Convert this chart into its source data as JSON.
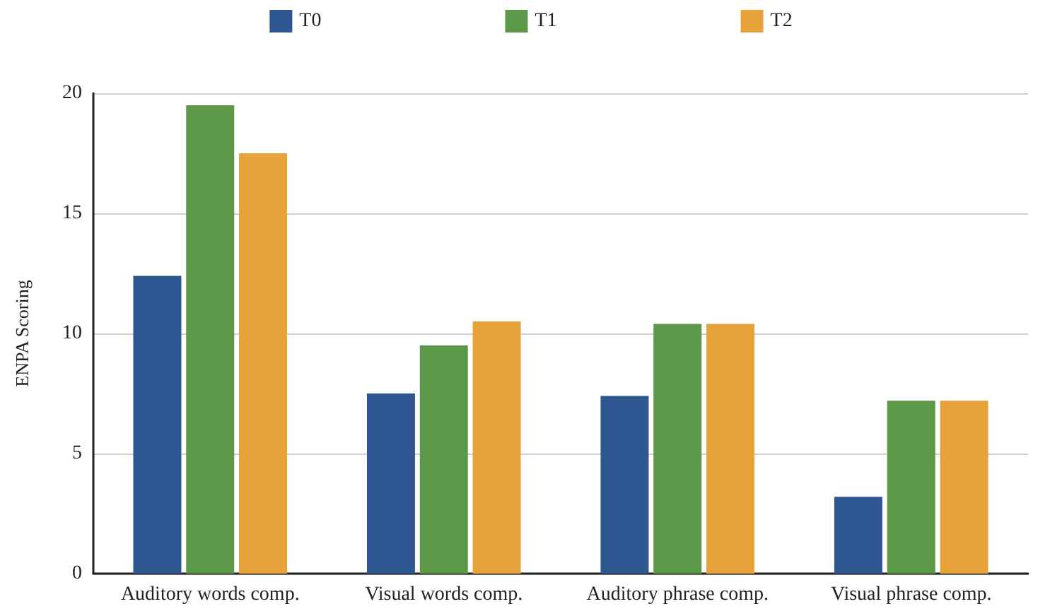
{
  "chart_data": {
    "type": "bar",
    "ylabel": "ENPA Scoring",
    "categories": [
      "Auditory words comp.",
      "Visual words comp.",
      "Auditory phrase comp.",
      "Visual phrase comp."
    ],
    "series": [
      {
        "name": "T0",
        "color": "#2e5690",
        "values": [
          12.4,
          7.5,
          7.4,
          3.2
        ]
      },
      {
        "name": "T1",
        "color": "#5b9847",
        "values": [
          19.5,
          9.5,
          10.4,
          7.2
        ]
      },
      {
        "name": "T2",
        "color": "#e8a23a",
        "values": [
          17.5,
          10.5,
          10.4,
          7.2
        ]
      }
    ],
    "ylim": [
      0,
      20
    ],
    "yticks": [
      0,
      5,
      10,
      15,
      20
    ],
    "grid": "y",
    "legend": "top"
  }
}
